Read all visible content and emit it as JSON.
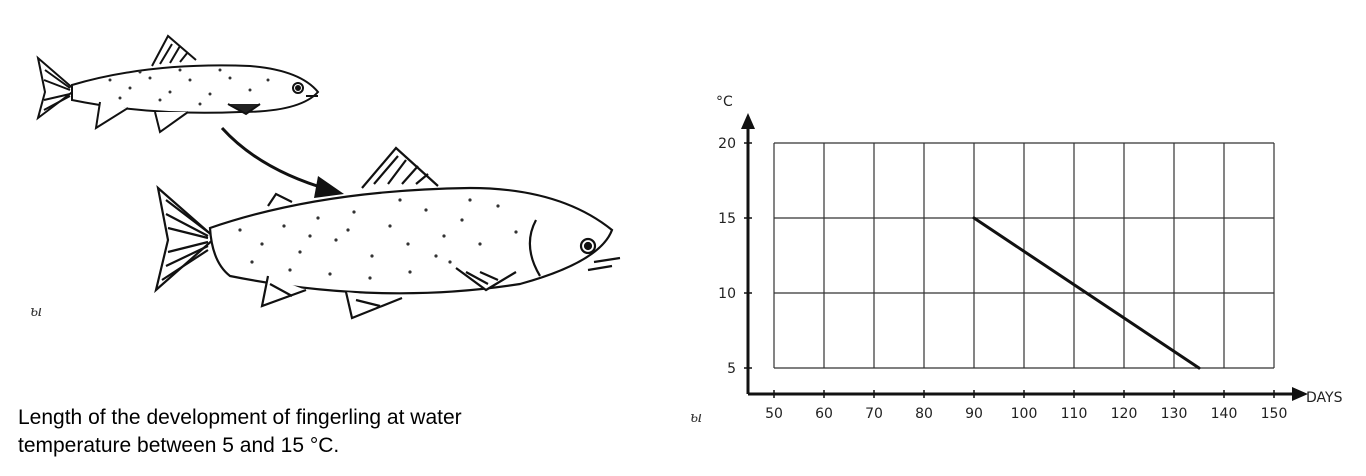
{
  "caption": {
    "line1": "Length of the development of fingerling at water",
    "line2": "temperature between 5 and 15 °C."
  },
  "signature": "ы",
  "chart_data": {
    "type": "line",
    "xlabel": "DAYS",
    "ylabel": "°C",
    "xlim": [
      50,
      150
    ],
    "ylim": [
      5,
      20
    ],
    "xticks": [
      "50",
      "60",
      "70",
      "80",
      "90",
      "100",
      "110",
      "120",
      "130",
      "140",
      "150"
    ],
    "yticks": [
      "5",
      "10",
      "15",
      "20"
    ],
    "grid": true,
    "series": [
      {
        "x": [
          90,
          135
        ],
        "y": [
          15,
          5
        ]
      }
    ]
  }
}
